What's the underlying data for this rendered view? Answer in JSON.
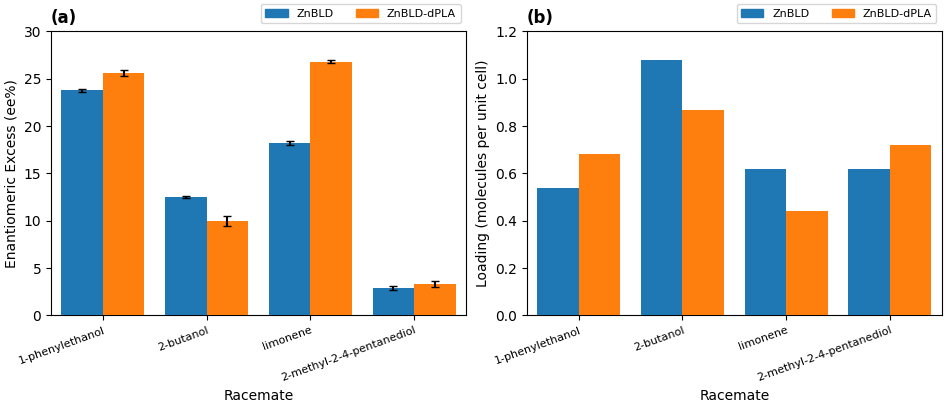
{
  "chart_data": [
    {
      "type": "bar",
      "title": "(a)",
      "xlabel": "Racemate",
      "ylabel": "Enantiomeric Excess (ee%)",
      "categories": [
        "1-phenylethanol",
        "2-butanol",
        "limonene",
        "2-methyl-2-4-pentanediol"
      ],
      "series": [
        {
          "name": "ZnBLD",
          "values": [
            23.8,
            12.5,
            18.2,
            2.9
          ],
          "errors": [
            0.15,
            0.15,
            0.2,
            0.25
          ]
        },
        {
          "name": "ZnBLD-dPLA",
          "values": [
            25.6,
            10.0,
            26.8,
            3.3
          ],
          "errors": [
            0.3,
            0.55,
            0.15,
            0.35
          ]
        }
      ],
      "ylim": [
        0,
        30
      ],
      "yticks": [
        0,
        5,
        10,
        15,
        20,
        25,
        30
      ],
      "legend": "upper right"
    },
    {
      "type": "bar",
      "title": "(b)",
      "xlabel": "Racemate",
      "ylabel": "Loading (molecules per unit cell)",
      "categories": [
        "1-phenylethanol",
        "2-butanol",
        "limonene",
        "2-methyl-2-4-pentanediol"
      ],
      "series": [
        {
          "name": "ZnBLD",
          "values": [
            0.54,
            1.08,
            0.62,
            0.62
          ]
        },
        {
          "name": "ZnBLD-dPLA",
          "values": [
            0.68,
            0.87,
            0.44,
            0.72
          ]
        }
      ],
      "ylim": [
        0,
        1.2
      ],
      "yticks": [
        0.0,
        0.2,
        0.4,
        0.6,
        0.8,
        1.0,
        1.2
      ],
      "legend": "upper right"
    }
  ]
}
